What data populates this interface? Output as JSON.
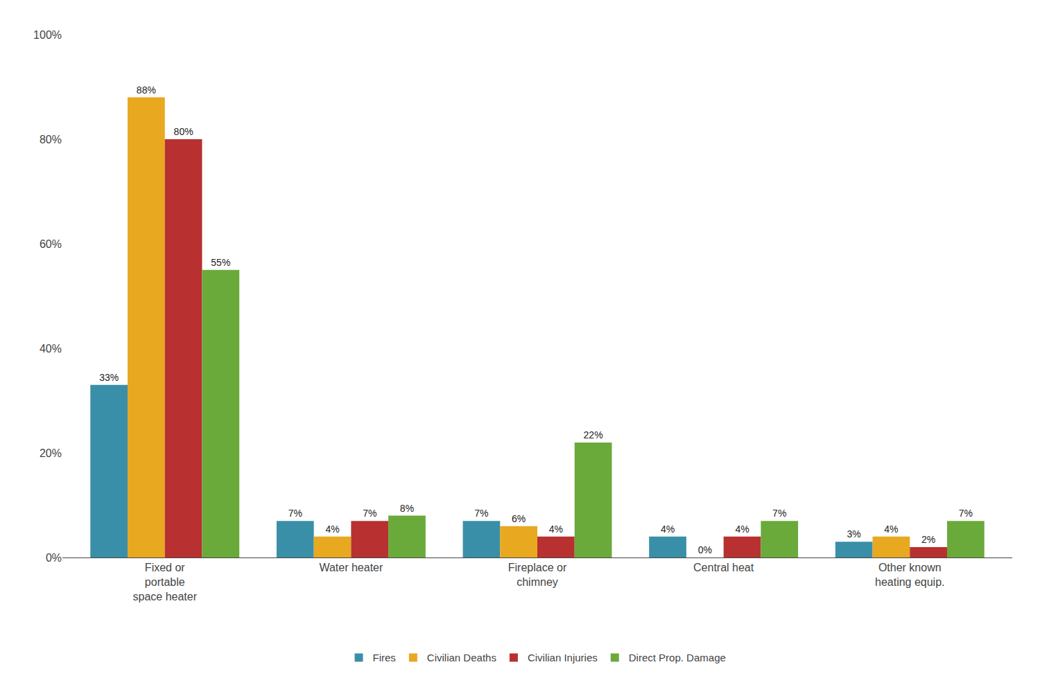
{
  "chart_data": {
    "type": "bar",
    "categories": [
      "Fixed or\nportable\nspace heater",
      "Water heater",
      "Fireplace or\nchimney",
      "Central heat",
      "Other known\nheating equip."
    ],
    "series": [
      {
        "name": "Fires",
        "color": "#3a8fa8",
        "values": [
          33,
          7,
          7,
          4,
          3
        ],
        "value_labels": [
          "33%",
          "7%",
          "7%",
          "4%",
          "3%"
        ]
      },
      {
        "name": "Civilian Deaths",
        "color": "#e8a820",
        "values": [
          88,
          4,
          6,
          0,
          4
        ],
        "value_labels": [
          "88%",
          "4%",
          "6%",
          "0%",
          "4%"
        ]
      },
      {
        "name": "Civilian Injuries",
        "color": "#b83030",
        "values": [
          80,
          7,
          4,
          4,
          2
        ],
        "value_labels": [
          "80%",
          "7%",
          "4%",
          "4%",
          "2%"
        ]
      },
      {
        "name": "Direct Prop. Damage",
        "color": "#6aaa3a",
        "values": [
          55,
          8,
          22,
          7,
          7
        ],
        "value_labels": [
          "55%",
          "8%",
          "22%",
          "7%",
          "7%"
        ]
      }
    ],
    "ylim": [
      0,
      100
    ],
    "yticks": [
      {
        "value": 0,
        "label": "0%"
      },
      {
        "value": 20,
        "label": "20%"
      },
      {
        "value": 40,
        "label": "40%"
      },
      {
        "value": 60,
        "label": "60%"
      },
      {
        "value": 80,
        "label": "80%"
      },
      {
        "value": 100,
        "label": "100%"
      }
    ],
    "grid": false,
    "legend": "bottom",
    "data_labels": true
  }
}
